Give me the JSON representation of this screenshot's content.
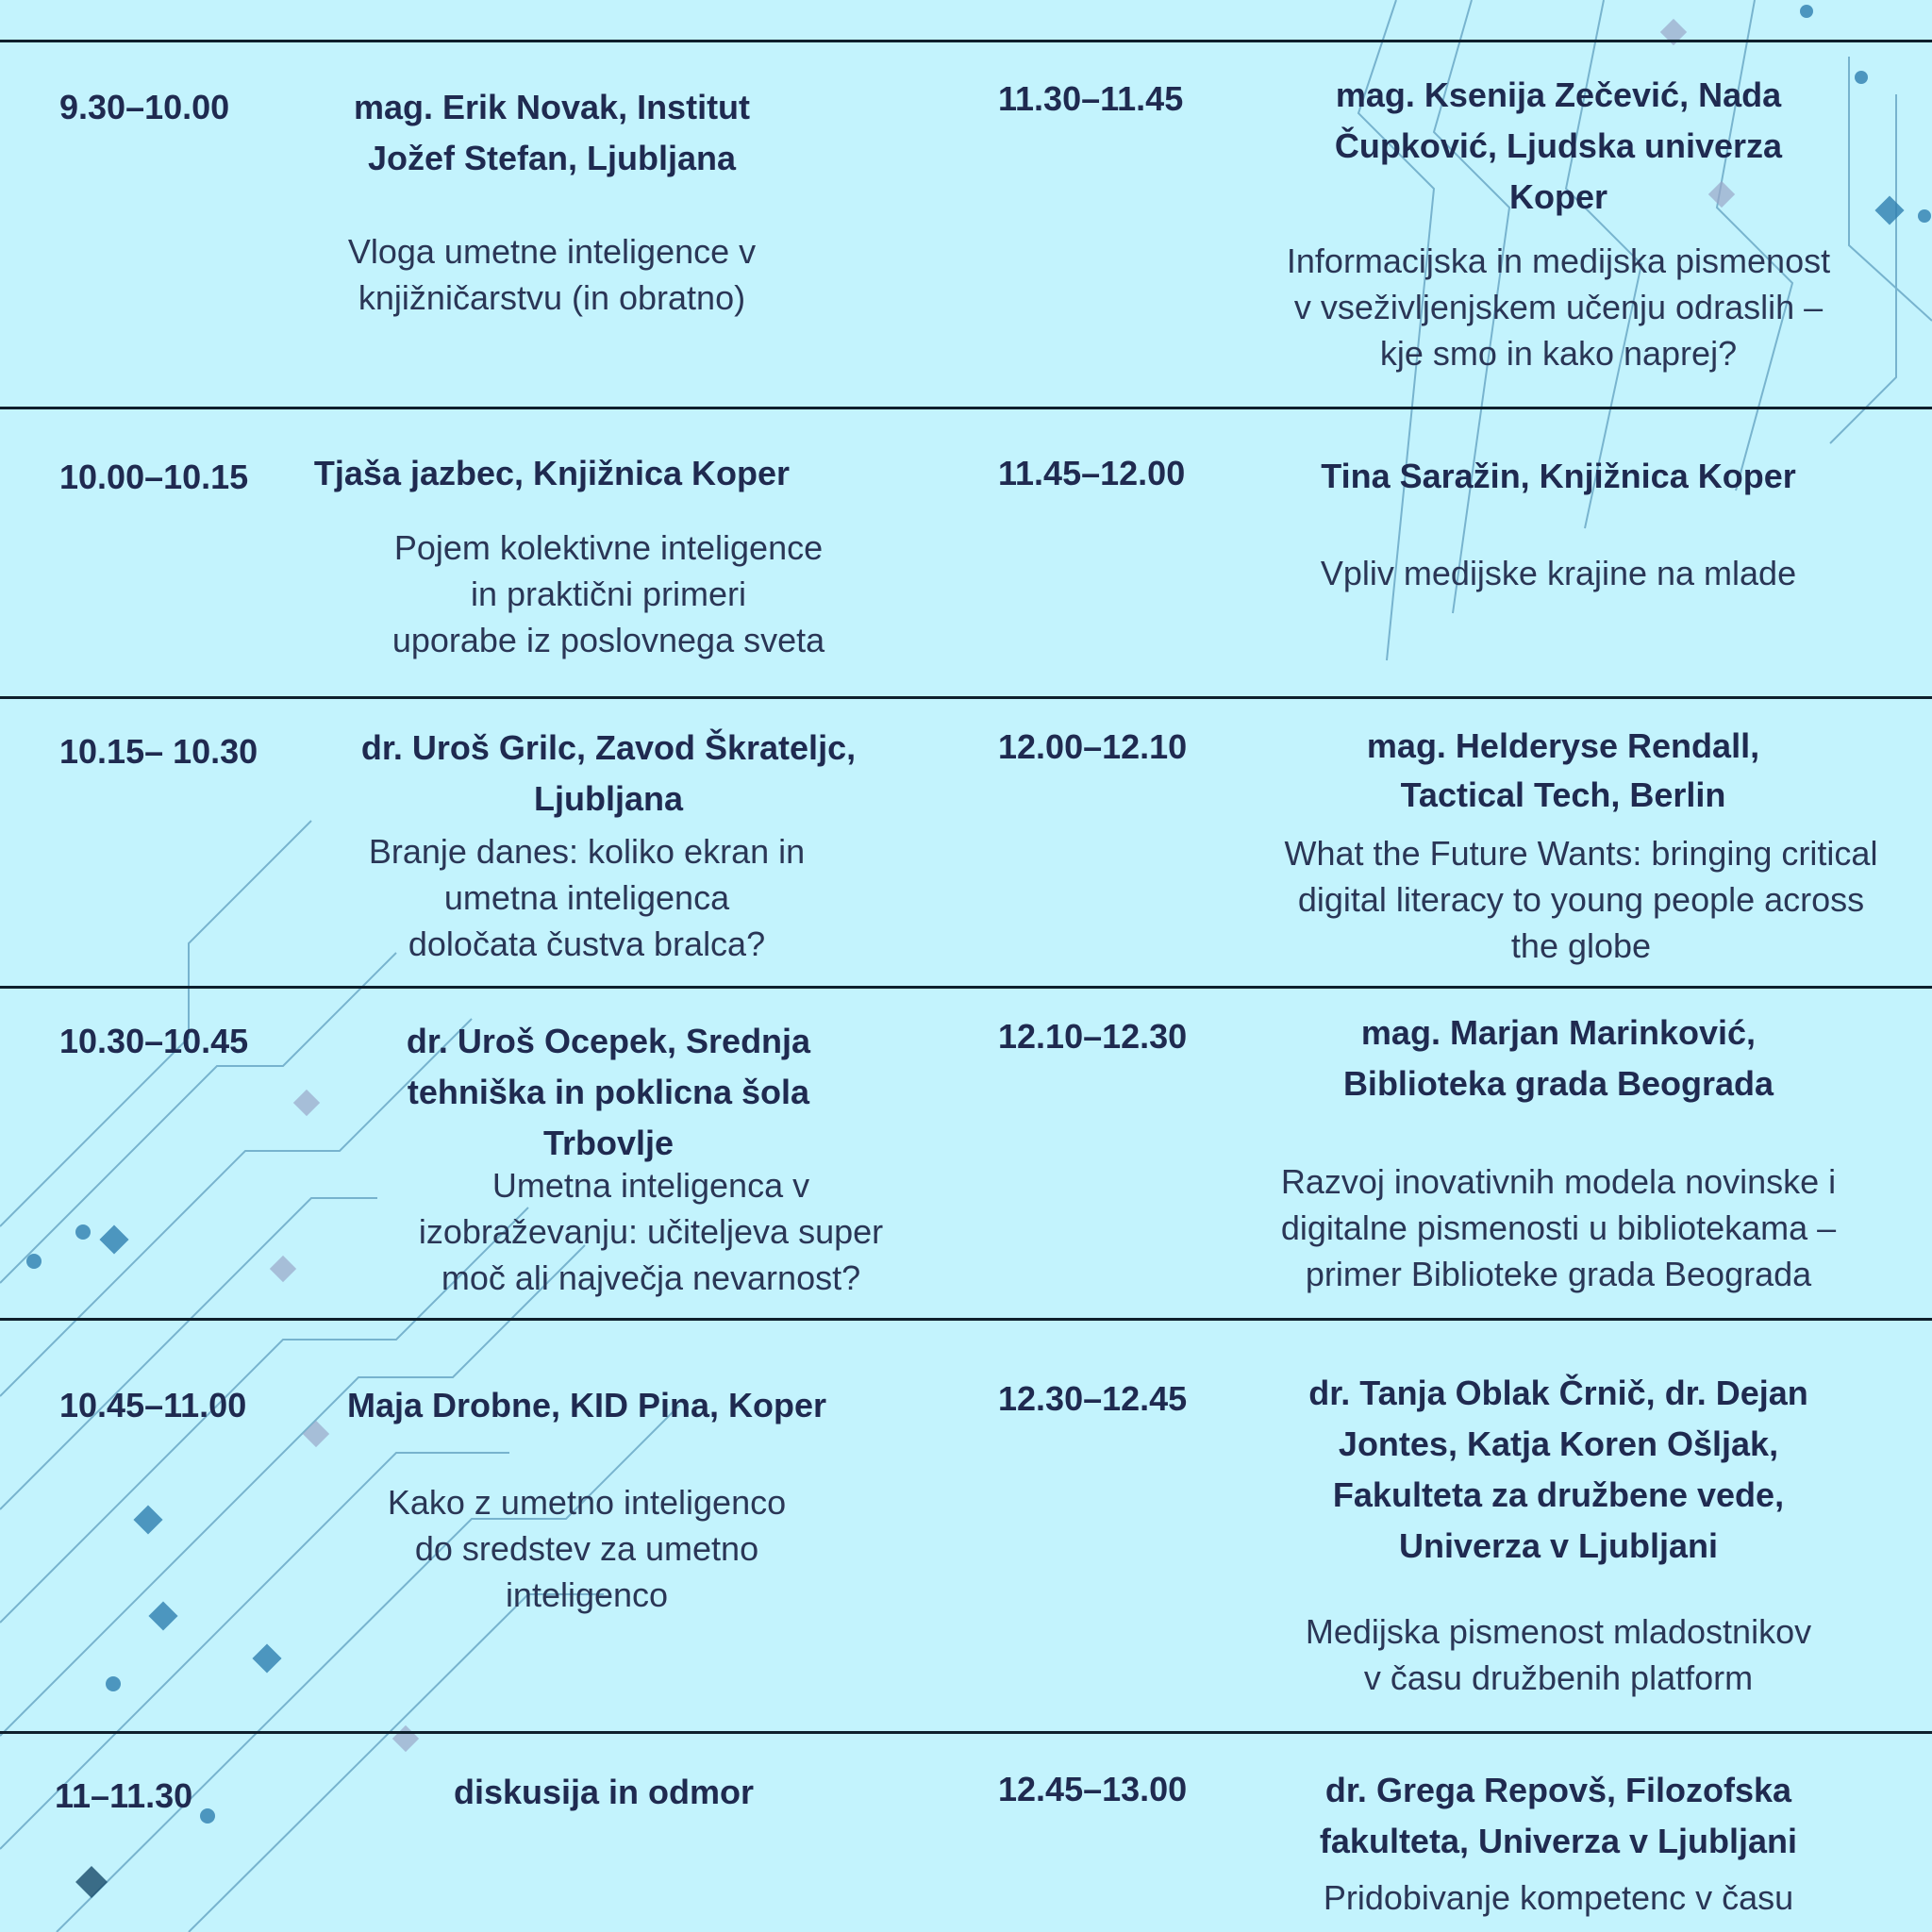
{
  "colors": {
    "background": "#c3f3fd",
    "text": "#1f2a50",
    "rule": "#0e1f2c",
    "circuit": "#3a7fa8"
  },
  "rows": [
    {
      "left": {
        "time": "9.30–10.00",
        "speaker": [
          "mag. Erik Novak, Institut",
          "Jožef Stefan, Ljubljana"
        ],
        "title": [
          "Vloga umetne inteligence v",
          "knjižničarstvu (in obratno)"
        ]
      },
      "right": {
        "time": "11.30–11.45",
        "speaker": [
          "mag. Ksenija Zečević, Nada",
          "Čupković, Ljudska univerza",
          "Koper"
        ],
        "title": [
          "Informacijska in medijska pismenost",
          "v vseživljenjskem učenju odraslih –",
          "kje smo in kako naprej?"
        ]
      }
    },
    {
      "left": {
        "time": "10.00–10.15",
        "speaker": [
          "Tjaša jazbec, Knjižnica Koper"
        ],
        "title": [
          "Pojem kolektivne inteligence",
          "in praktični primeri",
          "uporabe iz poslovnega sveta"
        ]
      },
      "right": {
        "time": "11.45–12.00",
        "speaker": [
          "Tina Saražin, Knjižnica Koper"
        ],
        "title": [
          "Vpliv medijske krajine na mlade"
        ]
      }
    },
    {
      "left": {
        "time": "10.15– 10.30",
        "speaker": [
          "dr. Uroš Grilc, Zavod Škrateljc,",
          "Ljubljana"
        ],
        "title": [
          "Branje danes: koliko ekran in",
          "umetna inteligenca",
          "določata čustva bralca?"
        ]
      },
      "right": {
        "time": "12.00–12.10",
        "speaker": [
          "mag. Helderyse Rendall,",
          "Tactical Tech, Berlin"
        ],
        "title": [
          "What the Future Wants: bringing critical",
          "digital literacy to young people across",
          "the globe"
        ]
      }
    },
    {
      "left": {
        "time": "10.30–10.45",
        "speaker": [
          "dr. Uroš Ocepek, Srednja",
          "tehniška in poklicna šola",
          "Trbovlje"
        ],
        "title": [
          "Umetna inteligenca v",
          "izobraževanju: učiteljeva super",
          "moč ali največja nevarnost?"
        ]
      },
      "right": {
        "time": "12.10–12.30",
        "speaker": [
          "mag. Marjan Marinković,",
          "Biblioteka grada Beograda"
        ],
        "title": [
          "Razvoj inovativnih modela novinske i",
          "digitalne pismenosti u bibliotekama –",
          "primer Biblioteke grada Beograda"
        ]
      }
    },
    {
      "left": {
        "time": "10.45–11.00",
        "speaker": [
          "Maja Drobne, KID Pina, Koper"
        ],
        "title": [
          "Kako z umetno inteligenco",
          "do sredstev za umetno",
          "inteligenco"
        ]
      },
      "right": {
        "time": "12.30–12.45",
        "speaker": [
          "dr. Tanja Oblak Črnič, dr. Dejan",
          "Jontes, Katja Koren Ošljak,",
          "Fakulteta za družbene vede,",
          "Univerza v Ljubljani"
        ],
        "title": [
          "Medijska pismenost mladostnikov",
          "v času družbenih platform"
        ]
      }
    },
    {
      "left": {
        "time": "11–11.30",
        "speaker": [
          "diskusija in odmor"
        ],
        "title": []
      },
      "right": {
        "time": "12.45–13.00",
        "speaker": [
          "dr. Grega Repovš, Filozofska",
          "fakulteta, Univerza v Ljubljani"
        ],
        "title": [
          "Pridobivanje kompetenc v času"
        ]
      }
    }
  ]
}
